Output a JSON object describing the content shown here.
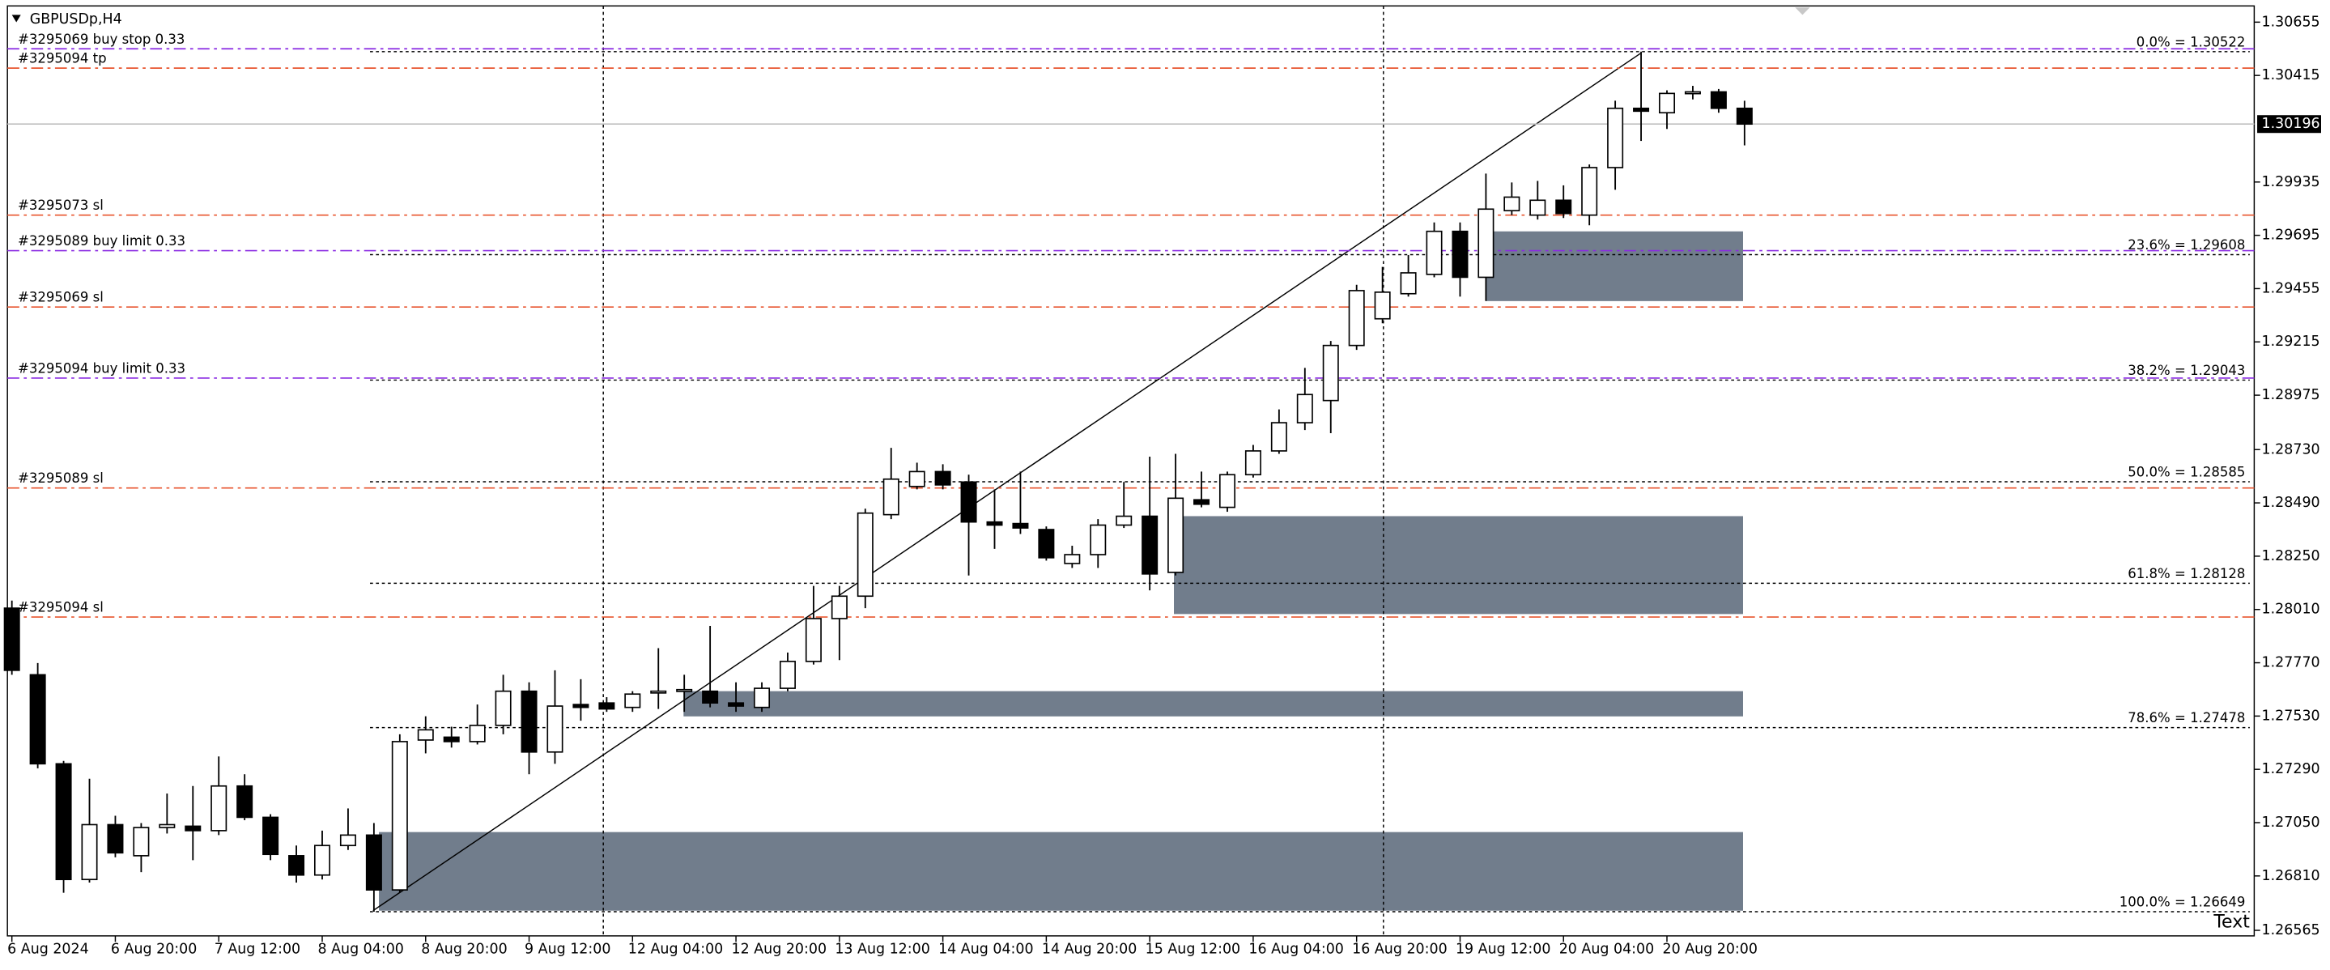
{
  "chart_data": {
    "type": "candlestick",
    "title": "GBPUSDp,H4",
    "categories": [
      "6 Aug 2024",
      null,
      null,
      null,
      "6 Aug 20:00",
      null,
      null,
      null,
      "7 Aug 12:00",
      null,
      null,
      null,
      "8 Aug 04:00",
      null,
      null,
      null,
      "8 Aug 20:00",
      null,
      null,
      null,
      "9 Aug 12:00",
      null,
      null,
      null,
      "12 Aug 04:00",
      null,
      null,
      null,
      "12 Aug 20:00",
      null,
      null,
      null,
      "13 Aug 12:00",
      null,
      null,
      null,
      "14 Aug 04:00",
      null,
      null,
      null,
      "14 Aug 20:00",
      null,
      null,
      null,
      "15 Aug 12:00",
      null,
      null,
      null,
      "16 Aug 04:00",
      null,
      null,
      null,
      "16 Aug 20:00",
      null,
      null,
      null,
      "19 Aug 12:00",
      null,
      null,
      null,
      "20 Aug 04:00",
      null,
      null,
      null,
      "20 Aug 20:00",
      null,
      null,
      null
    ],
    "open": [
      1.28016,
      1.27716,
      1.27315,
      1.26794,
      1.27041,
      1.26901,
      1.27028,
      1.27034,
      1.27014,
      1.27215,
      1.27074,
      1.26901,
      1.26814,
      1.26947,
      1.26994,
      1.26747,
      1.27422,
      1.27435,
      1.27415,
      1.27488,
      1.27642,
      1.27368,
      1.27582,
      1.27589,
      1.27569,
      1.27635,
      1.27642,
      1.27642,
      1.27589,
      1.27569,
      1.27655,
      1.27776,
      1.27969,
      1.2807,
      1.28437,
      1.28564,
      1.28631,
      1.28584,
      1.28404,
      1.28397,
      1.2837,
      1.28217,
      1.28257,
      1.2839,
      1.2843,
      1.28177,
      1.28504,
      1.2847,
      1.28617,
      1.28724,
      1.28851,
      1.28951,
      1.29199,
      1.29319,
      1.29432,
      1.29519,
      1.29713,
      1.29506,
      1.29806,
      1.29786,
      1.29853,
      1.29786,
      1.3,
      1.30267,
      1.30247,
      1.30334,
      1.30341,
      1.30267
    ],
    "high": [
      1.2805,
      1.27769,
      1.27328,
      1.27248,
      1.27081,
      1.27048,
      1.27181,
      1.27215,
      1.27348,
      1.27268,
      1.27088,
      1.26947,
      1.27014,
      1.27114,
      1.27048,
      1.27448,
      1.27529,
      1.27482,
      1.27582,
      1.27716,
      1.27682,
      1.27736,
      1.27696,
      1.27615,
      1.27642,
      1.27836,
      1.27716,
      1.27936,
      1.27682,
      1.27682,
      1.27816,
      1.28116,
      1.28116,
      1.28464,
      1.28738,
      1.28671,
      1.28664,
      1.28617,
      1.28551,
      1.28631,
      1.28384,
      1.28297,
      1.28417,
      1.28584,
      1.28698,
      1.28711,
      1.28631,
      1.28631,
      1.28751,
      1.28911,
      1.29098,
      1.29219,
      1.29472,
      1.29553,
      1.29606,
      1.29753,
      1.29753,
      1.29973,
      1.29933,
      1.2994,
      1.2992,
      1.30014,
      1.30301,
      1.30522,
      1.30348,
      1.30368,
      1.30354,
      1.30301
    ],
    "low": [
      1.27716,
      1.27295,
      1.26734,
      1.2678,
      1.26894,
      1.26827,
      1.27001,
      1.26881,
      1.26994,
      1.27061,
      1.26881,
      1.2678,
      1.26794,
      1.26927,
      1.26649,
      1.26734,
      1.27362,
      1.27388,
      1.27402,
      1.27448,
      1.27268,
      1.27315,
      1.27509,
      1.27549,
      1.27549,
      1.27562,
      1.27549,
      1.27569,
      1.27549,
      1.27549,
      1.27642,
      1.27762,
      1.27782,
      1.28016,
      1.28417,
      1.28551,
      1.28551,
      1.28163,
      1.28283,
      1.2835,
      1.2823,
      1.28197,
      1.28197,
      1.28377,
      1.28096,
      1.28163,
      1.2847,
      1.2845,
      1.28604,
      1.28711,
      1.28818,
      1.28804,
      1.29179,
      1.29299,
      1.29419,
      1.29506,
      1.29419,
      1.29399,
      1.29786,
      1.29766,
      1.29773,
      1.2974,
      1.299,
      1.3012,
      1.30174,
      1.30307,
      1.30247,
      1.301
    ],
    "close": [
      1.27736,
      1.27315,
      1.26794,
      1.27041,
      1.26914,
      1.27028,
      1.27041,
      1.27014,
      1.27215,
      1.27074,
      1.26907,
      1.26814,
      1.26947,
      1.26994,
      1.26747,
      1.27415,
      1.27468,
      1.27415,
      1.27488,
      1.27642,
      1.27368,
      1.27575,
      1.27569,
      1.27562,
      1.27629,
      1.27642,
      1.27649,
      1.27589,
      1.27575,
      1.27655,
      1.27776,
      1.27969,
      1.2807,
      1.28444,
      1.28597,
      1.28631,
      1.28571,
      1.28404,
      1.2839,
      1.28377,
      1.28243,
      1.28257,
      1.2839,
      1.2843,
      1.2817,
      1.28511,
      1.28484,
      1.28617,
      1.28724,
      1.28851,
      1.28978,
      1.29199,
      1.29446,
      1.29439,
      1.29526,
      1.29713,
      1.29506,
      1.29813,
      1.29867,
      1.29853,
      1.29793,
      1.3,
      1.30267,
      1.30254,
      1.30334,
      1.30341,
      1.30267,
      1.30196
    ],
    "colors": {
      "up": "#ffffff",
      "down": "#000000",
      "outline": "#000000"
    },
    "ylim": [
      1.2654,
      1.30728
    ],
    "yticks": [
      1.30655,
      1.30415,
      1.29935,
      1.29695,
      1.29455,
      1.29215,
      1.28975,
      {
        "value": 1.2873,
        "label": "1.28730"
      },
      {
        "value": 1.2849,
        "label": "1.28490"
      },
      {
        "value": 1.2825,
        "label": "1.28250"
      },
      {
        "value": 1.2801,
        "label": "1.28010"
      },
      {
        "value": 1.2777,
        "label": "1.27770"
      },
      {
        "value": 1.2753,
        "label": "1.27530"
      },
      {
        "value": 1.2729,
        "label": "1.27290"
      },
      {
        "value": 1.2705,
        "label": "1.27050"
      },
      {
        "value": 1.2681,
        "label": "1.26810"
      },
      1.26565
    ],
    "current_price": 1.30196,
    "fibonacci": [
      {
        "label": "0.0% = 1.30522",
        "value": 1.30522
      },
      {
        "label": "23.6% = 1.29608",
        "value": 1.29608
      },
      {
        "label": "38.2% = 1.29043",
        "value": 1.29043
      },
      {
        "label": "50.0% = 1.28585",
        "value": 1.28585
      },
      {
        "label": "61.8% = 1.28128",
        "value": 1.28128
      },
      {
        "label": "78.6% = 1.27478",
        "value": 1.27478
      },
      {
        "label": "100.0% = 1.26649",
        "value": 1.26649
      }
    ],
    "orders": [
      {
        "label": "#3295069 buy stop 0.33",
        "value": 1.30535,
        "color": "#8a2be2"
      },
      {
        "label": "#3295094 tp",
        "value": 1.30448,
        "color": "#e8552f"
      },
      {
        "label": "#3295073 sl",
        "value": 1.29786,
        "color": "#e8552f"
      },
      {
        "label": "#3295089 buy limit 0.33",
        "value": 1.29626,
        "color": "#8a2be2"
      },
      {
        "label": "#3295069 sl",
        "value": 1.29372,
        "color": "#e8552f"
      },
      {
        "label": "#3295094 buy limit 0.33",
        "value": 1.29052,
        "color": "#8a2be2"
      },
      {
        "label": "#3295089 sl",
        "value": 1.28557,
        "color": "#e8552f"
      },
      {
        "label": "#3295094 sl",
        "value": 1.27976,
        "color": "#e8552f"
      }
    ],
    "annotation": "Text"
  }
}
